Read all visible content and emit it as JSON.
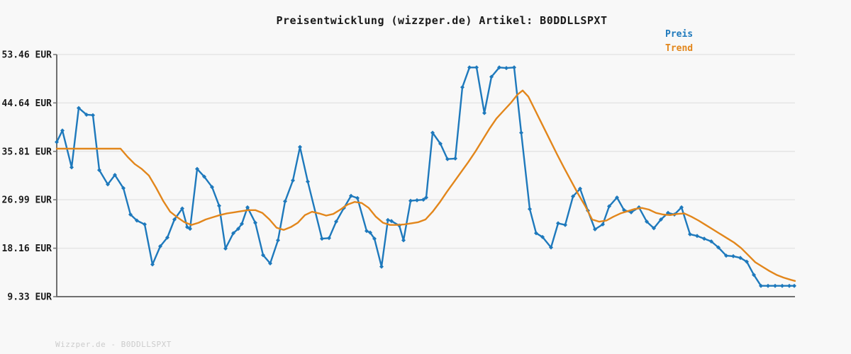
{
  "title": "Preisentwicklung (wizzper.de) Artikel: B0DDLLSPXT",
  "footer": "Wizzper.de - B0DDLLSPXT",
  "legend": {
    "items": [
      {
        "label": "Preis",
        "color": "#1e79bc"
      },
      {
        "label": "Trend",
        "color": "#e2861b"
      }
    ]
  },
  "colors": {
    "background": "#f8f8f8",
    "grid": "#e5e5e5",
    "axis": "#707070",
    "tick_label": "#1a1a1a",
    "preis": "#1e79bc",
    "trend": "#e2861b"
  },
  "chart_data": {
    "type": "line",
    "title": "Preisentwicklung (wizzper.de) Artikel: B0DDLLSPXT",
    "xlabel": "",
    "ylabel": "",
    "x_unit": "px (no x-axis tick labels visible)",
    "y_unit": "EUR",
    "ylim": [
      9.33,
      53.46
    ],
    "grid": "horizontal",
    "legend_position": "top-right",
    "yticks": [
      {
        "value": 53.46,
        "label": "53.46 EUR"
      },
      {
        "value": 44.64,
        "label": "44.64 EUR"
      },
      {
        "value": 35.81,
        "label": "35.81 EUR"
      },
      {
        "value": 26.99,
        "label": "26.99 EUR"
      },
      {
        "value": 18.16,
        "label": "18.16 EUR"
      },
      {
        "value": 9.33,
        "label": "9.33 EUR"
      }
    ],
    "series": [
      {
        "name": "Preis",
        "color": "#1e79bc",
        "marker": "diamond",
        "line_width": 2.4,
        "points": [
          [
            80,
            37.5
          ],
          [
            88,
            39.6
          ],
          [
            101,
            32.9
          ],
          [
            111,
            43.7
          ],
          [
            122,
            42.5
          ],
          [
            131,
            42.4
          ],
          [
            140,
            32.4
          ],
          [
            152,
            29.8
          ],
          [
            162,
            31.5
          ],
          [
            174,
            29.1
          ],
          [
            184,
            24.3
          ],
          [
            193,
            23.2
          ],
          [
            204,
            22.5
          ],
          [
            215,
            15.2
          ],
          [
            226,
            18.5
          ],
          [
            236,
            20.1
          ],
          [
            246,
            23.4
          ],
          [
            257,
            25.4
          ],
          [
            264,
            22.0
          ],
          [
            268,
            21.7
          ],
          [
            278,
            32.6
          ],
          [
            288,
            31.2
          ],
          [
            299,
            29.3
          ],
          [
            309,
            25.9
          ],
          [
            318,
            18.1
          ],
          [
            329,
            20.9
          ],
          [
            336,
            21.7
          ],
          [
            341,
            22.6
          ],
          [
            349,
            25.6
          ],
          [
            360,
            22.8
          ],
          [
            371,
            16.9
          ],
          [
            381,
            15.4
          ],
          [
            392,
            19.6
          ],
          [
            402,
            26.7
          ],
          [
            413,
            30.5
          ],
          [
            423,
            36.6
          ],
          [
            434,
            30.3
          ],
          [
            454,
            19.9
          ],
          [
            464,
            20.0
          ],
          [
            474,
            23.0
          ],
          [
            485,
            25.5
          ],
          [
            495,
            27.7
          ],
          [
            504,
            27.3
          ],
          [
            517,
            21.3
          ],
          [
            522,
            21.0
          ],
          [
            528,
            19.9
          ],
          [
            538,
            14.8
          ],
          [
            547,
            23.3
          ],
          [
            552,
            23.1
          ],
          [
            563,
            22.3
          ],
          [
            569,
            19.6
          ],
          [
            579,
            26.8
          ],
          [
            588,
            26.9
          ],
          [
            597,
            27.0
          ],
          [
            601,
            27.4
          ],
          [
            610,
            39.2
          ],
          [
            621,
            37.2
          ],
          [
            631,
            34.4
          ],
          [
            642,
            34.5
          ],
          [
            652,
            47.5
          ],
          [
            662,
            51.1
          ],
          [
            672,
            51.1
          ],
          [
            683,
            42.8
          ],
          [
            693,
            49.4
          ],
          [
            704,
            51.1
          ],
          [
            714,
            51.0
          ],
          [
            725,
            51.1
          ],
          [
            735,
            39.2
          ],
          [
            747,
            25.3
          ],
          [
            756,
            20.9
          ],
          [
            765,
            20.2
          ],
          [
            777,
            18.3
          ],
          [
            787,
            22.7
          ],
          [
            797,
            22.4
          ],
          [
            808,
            27.6
          ],
          [
            818,
            29.0
          ],
          [
            829,
            25.0
          ],
          [
            839,
            21.6
          ],
          [
            850,
            22.5
          ],
          [
            859,
            25.8
          ],
          [
            870,
            27.4
          ],
          [
            880,
            25.1
          ],
          [
            890,
            24.7
          ],
          [
            901,
            25.6
          ],
          [
            912,
            23.0
          ],
          [
            922,
            21.8
          ],
          [
            932,
            23.4
          ],
          [
            942,
            24.6
          ],
          [
            951,
            24.3
          ],
          [
            961,
            25.6
          ],
          [
            973,
            20.7
          ],
          [
            983,
            20.4
          ],
          [
            993,
            19.9
          ],
          [
            1003,
            19.4
          ],
          [
            1013,
            18.3
          ],
          [
            1024,
            16.8
          ],
          [
            1034,
            16.7
          ],
          [
            1044,
            16.4
          ],
          [
            1053,
            15.7
          ],
          [
            1063,
            13.3
          ],
          [
            1073,
            11.3
          ],
          [
            1083,
            11.3
          ],
          [
            1093,
            11.3
          ],
          [
            1103,
            11.3
          ],
          [
            1113,
            11.3
          ],
          [
            1120,
            11.3
          ]
        ]
      },
      {
        "name": "Trend",
        "color": "#e2861b",
        "marker": "none",
        "line_width": 2.4,
        "points": [
          [
            80,
            36.3
          ],
          [
            90,
            36.3
          ],
          [
            100,
            36.3
          ],
          [
            110,
            36.3
          ],
          [
            120,
            36.3
          ],
          [
            130,
            36.3
          ],
          [
            140,
            36.3
          ],
          [
            150,
            36.3
          ],
          [
            160,
            36.3
          ],
          [
            170,
            36.3
          ],
          [
            180,
            34.8
          ],
          [
            190,
            33.5
          ],
          [
            200,
            32.6
          ],
          [
            210,
            31.4
          ],
          [
            220,
            29.2
          ],
          [
            230,
            26.8
          ],
          [
            240,
            24.8
          ],
          [
            250,
            23.8
          ],
          [
            260,
            22.9
          ],
          [
            270,
            22.4
          ],
          [
            280,
            22.8
          ],
          [
            290,
            23.4
          ],
          [
            300,
            23.8
          ],
          [
            310,
            24.2
          ],
          [
            320,
            24.5
          ],
          [
            330,
            24.7
          ],
          [
            340,
            24.9
          ],
          [
            350,
            25.1
          ],
          [
            360,
            25.1
          ],
          [
            370,
            24.6
          ],
          [
            380,
            23.4
          ],
          [
            390,
            21.9
          ],
          [
            400,
            21.5
          ],
          [
            410,
            22.0
          ],
          [
            420,
            22.8
          ],
          [
            430,
            24.2
          ],
          [
            440,
            24.8
          ],
          [
            450,
            24.5
          ],
          [
            460,
            24.1
          ],
          [
            470,
            24.4
          ],
          [
            480,
            25.2
          ],
          [
            490,
            26.1
          ],
          [
            500,
            26.6
          ],
          [
            510,
            26.4
          ],
          [
            520,
            25.5
          ],
          [
            530,
            23.9
          ],
          [
            540,
            22.8
          ],
          [
            550,
            22.4
          ],
          [
            560,
            22.4
          ],
          [
            570,
            22.5
          ],
          [
            580,
            22.7
          ],
          [
            590,
            22.9
          ],
          [
            600,
            23.4
          ],
          [
            610,
            24.8
          ],
          [
            620,
            26.5
          ],
          [
            630,
            28.4
          ],
          [
            640,
            30.2
          ],
          [
            650,
            32.0
          ],
          [
            660,
            33.8
          ],
          [
            670,
            35.7
          ],
          [
            680,
            37.8
          ],
          [
            690,
            39.9
          ],
          [
            700,
            41.8
          ],
          [
            710,
            43.2
          ],
          [
            720,
            44.6
          ],
          [
            730,
            46.2
          ],
          [
            737,
            46.9
          ],
          [
            745,
            45.8
          ],
          [
            755,
            43.2
          ],
          [
            765,
            40.6
          ],
          [
            775,
            38.0
          ],
          [
            785,
            35.4
          ],
          [
            795,
            32.9
          ],
          [
            805,
            30.5
          ],
          [
            815,
            28.1
          ],
          [
            825,
            25.9
          ],
          [
            835,
            23.4
          ],
          [
            845,
            23.0
          ],
          [
            855,
            23.2
          ],
          [
            865,
            23.9
          ],
          [
            875,
            24.5
          ],
          [
            885,
            24.9
          ],
          [
            895,
            25.3
          ],
          [
            905,
            25.5
          ],
          [
            915,
            25.2
          ],
          [
            925,
            24.6
          ],
          [
            935,
            24.3
          ],
          [
            945,
            24.2
          ],
          [
            955,
            24.4
          ],
          [
            965,
            24.5
          ],
          [
            975,
            23.9
          ],
          [
            985,
            23.2
          ],
          [
            995,
            22.4
          ],
          [
            1005,
            21.6
          ],
          [
            1015,
            20.8
          ],
          [
            1025,
            20.0
          ],
          [
            1035,
            19.2
          ],
          [
            1045,
            18.2
          ],
          [
            1055,
            16.9
          ],
          [
            1065,
            15.6
          ],
          [
            1075,
            14.8
          ],
          [
            1085,
            14.0
          ],
          [
            1095,
            13.3
          ],
          [
            1105,
            12.8
          ],
          [
            1115,
            12.4
          ],
          [
            1121,
            12.2
          ]
        ]
      }
    ]
  }
}
